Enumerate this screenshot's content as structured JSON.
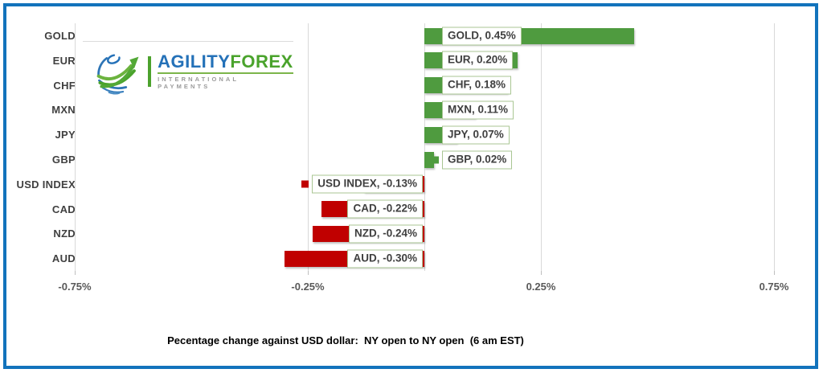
{
  "chart_data": {
    "type": "bar",
    "orientation": "horizontal",
    "title": "",
    "caption": "Pecentage change against USD dollar:  NY open to NY open  (6 am EST)",
    "categories": [
      "GOLD",
      "EUR",
      "CHF",
      "MXN",
      "JPY",
      "GBP",
      "USD INDEX",
      "CAD",
      "NZD",
      "AUD"
    ],
    "values": [
      0.45,
      0.2,
      0.18,
      0.11,
      0.07,
      0.02,
      -0.13,
      -0.22,
      -0.24,
      -0.3
    ],
    "data_labels": [
      "GOLD, 0.45%",
      "EUR, 0.20%",
      "CHF, 0.18%",
      "MXN, 0.11%",
      "JPY, 0.07%",
      "GBP, 0.02%",
      "USD INDEX, -0.13%",
      "CAD, -0.22%",
      "NZD, -0.24%",
      "AUD, -0.30%"
    ],
    "x_ticks": [
      {
        "value": -0.75,
        "label": "-0.75%"
      },
      {
        "value": -0.25,
        "label": "-0.25%"
      },
      {
        "value": 0.25,
        "label": "0.25%"
      },
      {
        "value": 0.75,
        "label": "0.75%"
      }
    ],
    "xlim": [
      -0.75,
      0.83
    ],
    "grid": "vertical",
    "legend_position": "none",
    "positive_color": "#4f9b3f",
    "negative_color": "#c00000",
    "label_box_border_color": "#a9c693",
    "gridline_color": "#d9d9d9"
  },
  "logo": {
    "brand_primary": "AGILITY",
    "brand_secondary": "FOREX",
    "tagline": "INTERNATIONAL PAYMENTS",
    "blue": "#2471b8",
    "green": "#4aa32c"
  },
  "frame": {
    "border_color": "#1273bc"
  }
}
